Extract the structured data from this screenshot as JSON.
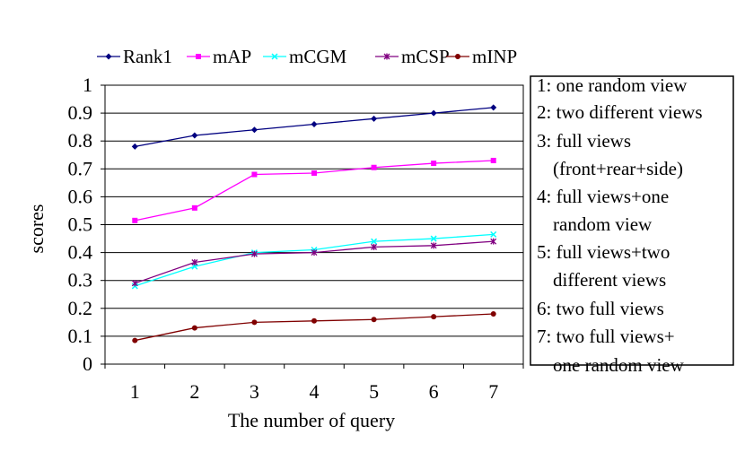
{
  "chart_data": {
    "type": "line",
    "xlabel": "The number of query",
    "ylabel": "scores",
    "categories": [
      "1",
      "2",
      "3",
      "4",
      "5",
      "6",
      "7"
    ],
    "ylim": [
      0,
      1
    ],
    "yticks": [
      "0",
      "0.1",
      "0.2",
      "0.3",
      "0.4",
      "0.5",
      "0.6",
      "0.7",
      "0.8",
      "0.9",
      "1"
    ],
    "grid": "horizontal",
    "legend_position": "top",
    "series": [
      {
        "name": "Rank1",
        "color": "#000080",
        "marker": "diamond",
        "values": [
          0.78,
          0.82,
          0.84,
          0.86,
          0.88,
          0.9,
          0.92
        ]
      },
      {
        "name": "mAP",
        "color": "#ff00ff",
        "marker": "square",
        "values": [
          0.515,
          0.56,
          0.68,
          0.685,
          0.705,
          0.72,
          0.73
        ]
      },
      {
        "name": "mCGM",
        "color": "#00ffff",
        "marker": "cross",
        "values": [
          0.28,
          0.35,
          0.4,
          0.41,
          0.44,
          0.45,
          0.465
        ]
      },
      {
        "name": "mCSP",
        "color": "#800080",
        "marker": "star",
        "values": [
          0.29,
          0.365,
          0.395,
          0.4,
          0.42,
          0.425,
          0.44
        ]
      },
      {
        "name": "mINP",
        "color": "#800000",
        "marker": "circle",
        "values": [
          0.085,
          0.13,
          0.15,
          0.155,
          0.16,
          0.17,
          0.18
        ]
      }
    ],
    "notes": [
      "1: one random view",
      "2: two different views",
      "3: full views",
      "(front+rear+side)",
      "4: full views+one",
      "random view",
      "5: full views+two",
      "different views",
      "6: two full views",
      "7: two full views+",
      "one random view"
    ]
  }
}
